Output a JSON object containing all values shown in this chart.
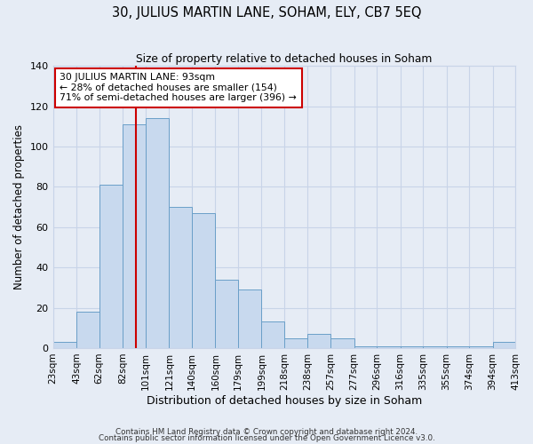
{
  "title_main": "30, JULIUS MARTIN LANE, SOHAM, ELY, CB7 5EQ",
  "subtitle": "Size of property relative to detached houses in Soham",
  "xlabel": "Distribution of detached houses by size in Soham",
  "ylabel": "Number of detached properties",
  "bar_edges": [
    23,
    43,
    62,
    82,
    101,
    121,
    140,
    160,
    179,
    199,
    218,
    238,
    257,
    277,
    296,
    316,
    335,
    355,
    374,
    394,
    413
  ],
  "bar_heights": [
    3,
    18,
    81,
    111,
    114,
    70,
    67,
    34,
    29,
    13,
    5,
    7,
    5,
    1,
    1,
    1,
    1,
    1,
    1,
    3
  ],
  "bar_color": "#c8d9ee",
  "bar_edge_color": "#6a9fc8",
  "property_size": 93,
  "annotation_line1": "30 JULIUS MARTIN LANE: 93sqm",
  "annotation_line2": "← 28% of detached houses are smaller (154)",
  "annotation_line3": "71% of semi-detached houses are larger (396) →",
  "annotation_box_color": "#ffffff",
  "annotation_box_edge": "#cc0000",
  "vline_color": "#cc0000",
  "ylim": [
    0,
    140
  ],
  "yticks": [
    0,
    20,
    40,
    60,
    80,
    100,
    120,
    140
  ],
  "grid_color": "#c8d4e8",
  "bg_color": "#e6ecf5",
  "footer1": "Contains HM Land Registry data © Crown copyright and database right 2024.",
  "footer2": "Contains public sector information licensed under the Open Government Licence v3.0."
}
